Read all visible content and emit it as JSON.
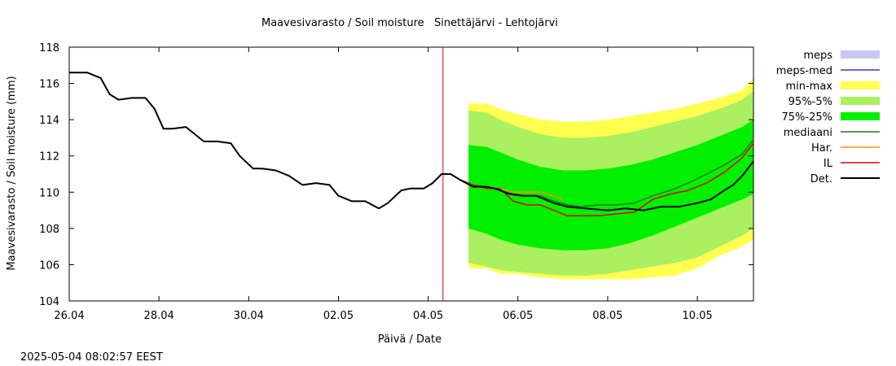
{
  "chart_data": {
    "type": "line",
    "title": "Maavesivarasto / Soil moisture   Sinettäjärvi - Lehtojärvi",
    "xlabel": "Päivä / Date",
    "ylabel": "Maavesivarasto / Soil moisture (mm)",
    "timestamp": "2025-05-04 08:02:57 EEST",
    "xlim": [
      0,
      15.25
    ],
    "ylim": [
      104,
      118
    ],
    "x_unit": "days since 26.04",
    "x_ticks": [
      {
        "x": 0,
        "label": "26.04"
      },
      {
        "x": 2,
        "label": "28.04"
      },
      {
        "x": 4,
        "label": "30.04"
      },
      {
        "x": 6,
        "label": "02.05"
      },
      {
        "x": 8,
        "label": "04.05"
      },
      {
        "x": 10,
        "label": "06.05"
      },
      {
        "x": 12,
        "label": "08.05"
      },
      {
        "x": 14,
        "label": "10.05"
      }
    ],
    "y_ticks": [
      104,
      106,
      108,
      110,
      112,
      114,
      116,
      118
    ],
    "now_x": 8.33,
    "colors": {
      "meps": "#c8c8f4",
      "meps_med": "#3a3ab8",
      "min_max": "#ffff50",
      "p95_5": "#aaf060",
      "p75_25": "#00f000",
      "median": "#1a7a1a",
      "har": "#ff8c00",
      "il": "#e00000",
      "det": "#000000",
      "now_line": "#e00000"
    },
    "legend": {
      "placement": "right",
      "items": [
        {
          "label": "meps",
          "kind": "box",
          "color": "#c8c8f4"
        },
        {
          "label": "meps-med",
          "kind": "line",
          "color": "#3a3ab8"
        },
        {
          "label": "min-max",
          "kind": "box",
          "color": "#ffff50"
        },
        {
          "label": "95%-5%",
          "kind": "box",
          "color": "#aaf060"
        },
        {
          "label": "75%-25%",
          "kind": "box",
          "color": "#00f000"
        },
        {
          "label": "mediaani",
          "kind": "line",
          "color": "#1a7a1a"
        },
        {
          "label": "Har.",
          "kind": "line",
          "color": "#ff8c00"
        },
        {
          "label": "IL",
          "kind": "line",
          "color": "#e00000"
        },
        {
          "label": "Det.",
          "kind": "line",
          "color": "#000000"
        }
      ]
    },
    "bands": {
      "min_max": {
        "x": [
          8.9,
          9.3,
          9.6,
          10.0,
          10.5,
          11.0,
          11.5,
          12.0,
          12.5,
          13.0,
          13.5,
          14.0,
          14.5,
          15.0,
          15.25
        ],
        "upper": [
          114.9,
          114.9,
          114.6,
          114.3,
          114.0,
          113.9,
          113.9,
          114.0,
          114.2,
          114.4,
          114.6,
          114.9,
          115.2,
          115.6,
          116.3
        ],
        "lower": [
          105.8,
          105.8,
          105.5,
          105.5,
          105.3,
          105.2,
          105.2,
          105.2,
          105.2,
          105.3,
          105.4,
          105.8,
          106.5,
          107.0,
          107.4
        ]
      },
      "p95_5": {
        "x": [
          8.9,
          9.3,
          9.6,
          10.0,
          10.5,
          11.0,
          11.5,
          12.0,
          12.5,
          13.0,
          13.5,
          14.0,
          14.5,
          15.0,
          15.25
        ],
        "upper": [
          114.5,
          114.4,
          114.0,
          113.6,
          113.2,
          113.0,
          113.0,
          113.1,
          113.3,
          113.6,
          113.9,
          114.2,
          114.6,
          115.1,
          115.6
        ],
        "lower": [
          106.1,
          105.9,
          105.7,
          105.6,
          105.5,
          105.4,
          105.4,
          105.5,
          105.7,
          105.9,
          106.1,
          106.4,
          107.0,
          107.6,
          108.0
        ]
      },
      "p75_25": {
        "x": [
          8.9,
          9.3,
          9.6,
          10.0,
          10.5,
          11.0,
          11.5,
          12.0,
          12.5,
          13.0,
          13.5,
          14.0,
          14.5,
          15.0,
          15.25
        ],
        "upper": [
          112.6,
          112.5,
          112.2,
          111.8,
          111.4,
          111.2,
          111.2,
          111.3,
          111.5,
          111.8,
          112.2,
          112.6,
          113.1,
          113.6,
          114.0
        ],
        "lower": [
          108.0,
          107.7,
          107.4,
          107.1,
          106.9,
          106.8,
          106.8,
          106.9,
          107.2,
          107.6,
          108.1,
          108.6,
          109.1,
          109.6,
          109.9
        ]
      }
    },
    "series": [
      {
        "name": "Det.",
        "key": "det",
        "x": [
          0,
          0.4,
          0.7,
          0.9,
          1.1,
          1.4,
          1.7,
          1.9,
          2.1,
          2.3,
          2.6,
          2.8,
          3.0,
          3.3,
          3.6,
          3.8,
          4.1,
          4.3,
          4.6,
          4.9,
          5.2,
          5.5,
          5.8,
          6.0,
          6.3,
          6.6,
          6.9,
          7.1,
          7.4,
          7.6,
          7.9,
          8.1,
          8.3,
          8.5,
          8.7,
          9.0,
          9.3,
          9.5,
          9.8,
          10.1,
          10.4,
          10.8,
          11.1,
          11.5,
          12.0,
          12.4,
          12.8,
          13.2,
          13.6,
          14.0,
          14.3,
          14.6,
          14.8,
          15.0,
          15.25
        ],
        "y": [
          116.6,
          116.6,
          116.3,
          115.4,
          115.1,
          115.2,
          115.2,
          114.6,
          113.5,
          113.5,
          113.6,
          113.2,
          112.8,
          112.8,
          112.7,
          112.0,
          111.3,
          111.3,
          111.2,
          110.9,
          110.4,
          110.5,
          110.4,
          109.8,
          109.5,
          109.5,
          109.1,
          109.4,
          110.1,
          110.2,
          110.2,
          110.5,
          111.0,
          111.0,
          110.7,
          110.3,
          110.3,
          110.2,
          109.9,
          109.8,
          109.8,
          109.4,
          109.2,
          109.1,
          109.0,
          109.1,
          109.0,
          109.2,
          109.2,
          109.4,
          109.6,
          110.1,
          110.4,
          110.9,
          111.7
        ]
      },
      {
        "name": "mediaani",
        "key": "median",
        "x": [
          8.7,
          9.0,
          9.3,
          9.6,
          9.9,
          10.2,
          10.5,
          10.8,
          11.1,
          11.4,
          11.8,
          12.2,
          12.6,
          13.0,
          13.4,
          13.8,
          14.2,
          14.6,
          15.0,
          15.25
        ],
        "y": [
          110.7,
          110.4,
          110.3,
          110.1,
          109.9,
          109.8,
          109.8,
          109.5,
          109.3,
          109.2,
          109.3,
          109.3,
          109.4,
          109.8,
          110.1,
          110.5,
          111.0,
          111.5,
          112.1,
          112.9
        ]
      },
      {
        "name": "IL",
        "key": "il",
        "x": [
          8.7,
          9.0,
          9.3,
          9.6,
          9.9,
          10.2,
          10.5,
          10.8,
          11.1,
          11.4,
          11.8,
          12.2,
          12.6,
          13.0,
          13.4,
          13.8,
          14.2,
          14.6,
          15.0,
          15.25
        ],
        "y": [
          110.7,
          110.4,
          110.2,
          110.2,
          109.5,
          109.3,
          109.3,
          109.0,
          108.7,
          108.7,
          108.7,
          108.8,
          108.9,
          109.6,
          109.9,
          110.1,
          110.5,
          111.1,
          111.9,
          112.7
        ]
      },
      {
        "name": "Har.",
        "key": "har",
        "x": [
          8.7,
          9.0,
          9.3,
          9.6,
          9.9,
          10.2,
          10.5,
          10.8,
          11.0
        ],
        "y": [
          110.7,
          110.4,
          110.3,
          110.2,
          110.0,
          110.0,
          110.0,
          109.8,
          109.6
        ]
      }
    ]
  }
}
